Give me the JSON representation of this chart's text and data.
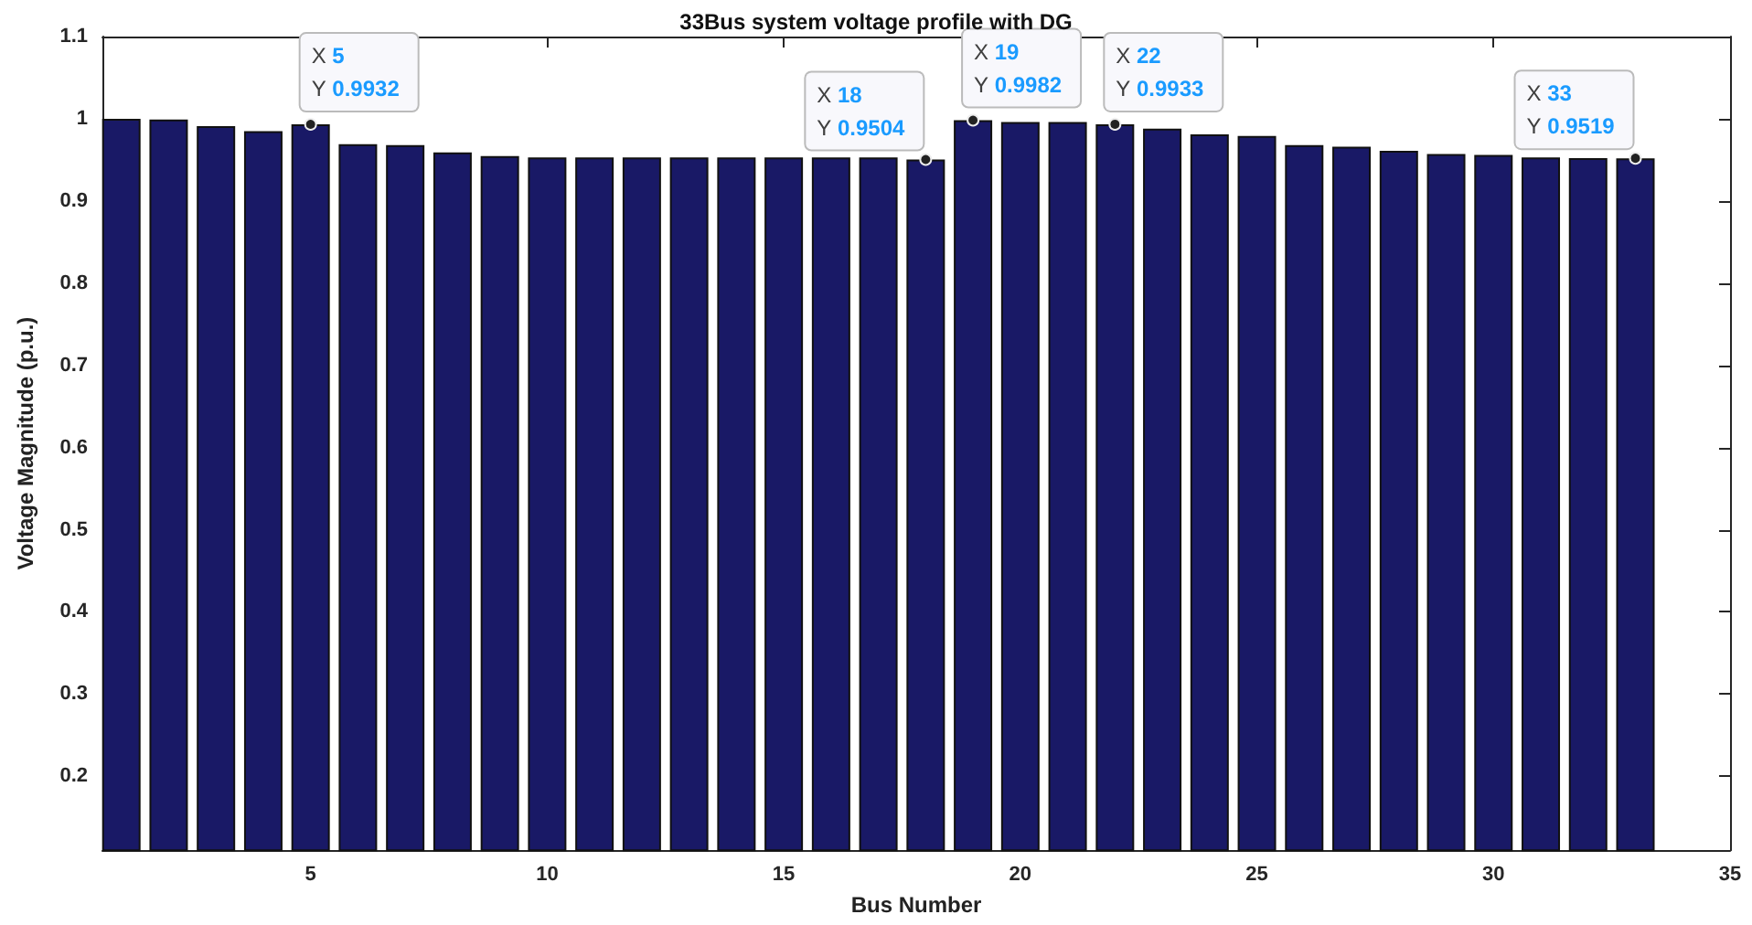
{
  "chart_data": {
    "type": "bar",
    "title": "33Bus system voltage profile with DG",
    "xlabel": "Bus Number",
    "ylabel": "Voltage Magnitude (p.u.)",
    "x": [
      1,
      2,
      3,
      4,
      5,
      6,
      7,
      8,
      9,
      10,
      11,
      12,
      13,
      14,
      15,
      16,
      17,
      18,
      19,
      20,
      21,
      22,
      23,
      24,
      25,
      26,
      27,
      28,
      29,
      30,
      31,
      32,
      33
    ],
    "values": [
      1.0,
      0.999,
      0.991,
      0.985,
      0.9932,
      0.969,
      0.968,
      0.959,
      0.9545,
      0.953,
      0.953,
      0.953,
      0.953,
      0.953,
      0.953,
      0.953,
      0.953,
      0.9504,
      0.9982,
      0.996,
      0.996,
      0.9933,
      0.988,
      0.981,
      0.979,
      0.968,
      0.966,
      0.961,
      0.957,
      0.956,
      0.953,
      0.952,
      0.9519
    ],
    "color": "#191966",
    "xlim": [
      0.6,
      35
    ],
    "xticks": [
      5,
      10,
      15,
      20,
      25,
      30,
      35
    ],
    "ylim": [
      0.11,
      1.1
    ],
    "yticks": [
      0.2,
      0.3,
      0.4,
      0.5,
      0.6,
      0.7,
      0.8,
      0.9,
      1,
      1.1
    ],
    "grid": false,
    "annotations": [
      {
        "text": "X 5\nY 0.9932",
        "x": 5,
        "y": 0.9932
      },
      {
        "text": "X 18\nY 0.9504",
        "x": 18,
        "y": 0.9504
      },
      {
        "text": "X 19\nY 0.9982",
        "x": 19,
        "y": 0.9982
      },
      {
        "text": "X 22\nY 0.9933",
        "x": 22,
        "y": 0.9933
      },
      {
        "text": "X 33\nY 0.9519",
        "x": 33,
        "y": 0.9519
      }
    ]
  }
}
